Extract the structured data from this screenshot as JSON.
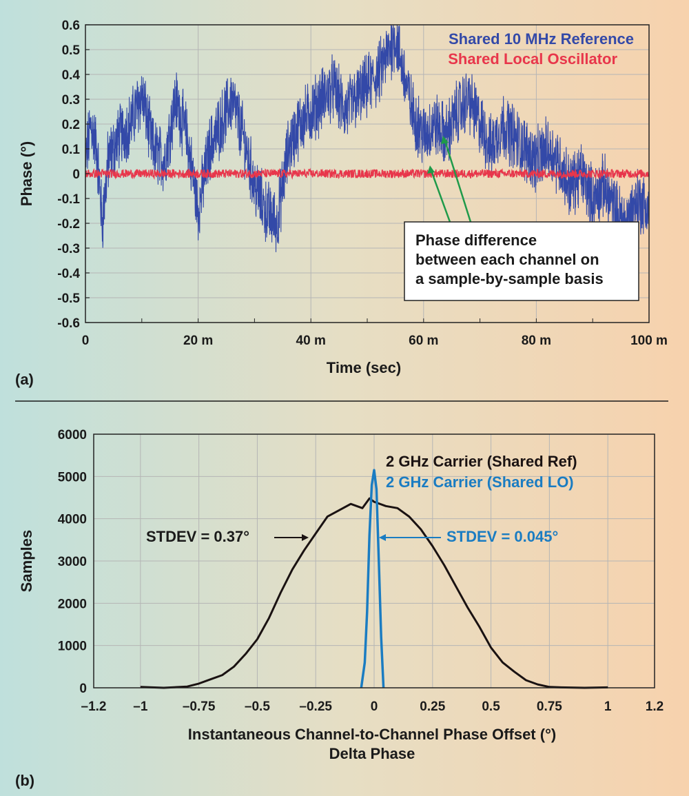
{
  "panel_labels": {
    "a": "(a)",
    "b": "(b)"
  },
  "colors": {
    "ref_blue": "#3349a8",
    "lo_red": "#e8364b",
    "black_curve": "#1a1212",
    "lo_blue": "#1a7cc2",
    "arrow_green": "#1f9a4a"
  },
  "chart_data": [
    {
      "type": "line",
      "xlabel": "Time (sec)",
      "ylabel": "Phase (°)",
      "xlim": [
        0,
        100
      ],
      "ylim": [
        -0.6,
        0.6
      ],
      "x_ticks": [
        0,
        20,
        40,
        60,
        80,
        100
      ],
      "x_tick_labels": [
        "0",
        "20 m",
        "40 m",
        "60 m",
        "80 m",
        "100 m"
      ],
      "y_ticks": [
        0.6,
        0.5,
        0.4,
        0.3,
        0.2,
        0.1,
        0,
        -0.1,
        -0.2,
        -0.3,
        -0.4,
        -0.5,
        -0.6
      ],
      "y_tick_labels": [
        "0.6",
        "0.5",
        "0.4",
        "0.3",
        "0.2",
        "0.1",
        "0",
        "-0.1",
        "-0.2",
        "-0.3",
        "-0.4",
        "-0.5",
        "-0.6"
      ],
      "grid": true,
      "legend_position": "top-right",
      "series": [
        {
          "name": "Shared 10 MHz  Reference",
          "x": [
            0,
            1,
            2,
            3,
            4,
            6,
            8,
            10,
            12,
            14,
            16,
            18,
            20,
            22,
            24,
            26,
            28,
            30,
            32,
            34,
            36,
            38,
            40,
            42,
            44,
            46,
            48,
            50,
            52,
            54,
            55,
            56,
            58,
            60,
            62,
            64,
            66,
            68,
            70,
            72,
            74,
            76,
            78,
            80,
            82,
            84,
            86,
            88,
            90,
            92,
            94,
            96,
            98,
            100
          ],
          "y": [
            0.05,
            0.2,
            0.1,
            -0.2,
            0.05,
            0.15,
            0.2,
            0.32,
            0.1,
            0.05,
            0.3,
            0.15,
            -0.15,
            0.1,
            0.2,
            0.3,
            0.15,
            -0.05,
            -0.15,
            -0.2,
            0.1,
            0.2,
            0.25,
            0.3,
            0.35,
            0.25,
            0.3,
            0.35,
            0.4,
            0.5,
            0.55,
            0.45,
            0.25,
            0.15,
            0.2,
            0.15,
            0.25,
            0.3,
            0.2,
            0.1,
            0.2,
            0.15,
            0.1,
            0.05,
            0.1,
            0.05,
            -0.05,
            0.0,
            -0.1,
            -0.05,
            -0.15,
            -0.2,
            -0.1,
            -0.15
          ]
        },
        {
          "name": "Shared Local  Oscillator",
          "x": [
            0,
            100
          ],
          "y": [
            0,
            0
          ]
        }
      ],
      "annotation": [
        "Phase difference",
        "between each channel on",
        "a sample-by-sample basis"
      ]
    },
    {
      "type": "line",
      "xlabel": "Instantaneous Channel-to-Channel Phase Offset (°)",
      "xlabel2": "Delta Phase",
      "ylabel": "Samples",
      "xlim": [
        -1.2,
        1.2
      ],
      "ylim": [
        0,
        6000
      ],
      "x_ticks": [
        -1.2,
        -1,
        -0.75,
        -0.5,
        -0.25,
        0,
        0.25,
        0.5,
        0.75,
        1,
        1.2
      ],
      "x_tick_labels": [
        "–1.2",
        "–1",
        "–0.75",
        "–0.5",
        "–0.25",
        "0",
        "0.25",
        "0.5",
        "0.75",
        "1",
        "1.2"
      ],
      "y_ticks": [
        0,
        1000,
        2000,
        3000,
        4000,
        5000,
        6000
      ],
      "y_tick_labels": [
        "0",
        "1000",
        "2000",
        "3000",
        "4000",
        "5000",
        "6000"
      ],
      "grid": true,
      "legend_position": "top-right",
      "series": [
        {
          "name": "2 GHz Carrier (Shared Ref)",
          "x": [
            -1.0,
            -0.9,
            -0.8,
            -0.75,
            -0.7,
            -0.65,
            -0.6,
            -0.55,
            -0.5,
            -0.45,
            -0.4,
            -0.35,
            -0.3,
            -0.25,
            -0.2,
            -0.15,
            -0.1,
            -0.05,
            -0.02,
            0.0,
            0.05,
            0.1,
            0.15,
            0.2,
            0.25,
            0.3,
            0.35,
            0.4,
            0.45,
            0.5,
            0.55,
            0.6,
            0.65,
            0.7,
            0.75,
            0.8,
            0.9,
            1.0
          ],
          "y": [
            20,
            0,
            30,
            100,
            200,
            300,
            500,
            800,
            1150,
            1650,
            2250,
            2800,
            3250,
            3650,
            4050,
            4200,
            4350,
            4250,
            4480,
            4400,
            4300,
            4250,
            4050,
            3750,
            3350,
            2900,
            2400,
            1900,
            1450,
            950,
            600,
            380,
            180,
            80,
            20,
            10,
            0,
            10
          ]
        },
        {
          "name": "2 GHz Carrier (Shared LO)",
          "x": [
            -0.055,
            -0.04,
            -0.03,
            -0.02,
            -0.01,
            0.0,
            0.01,
            0.02,
            0.03,
            0.04
          ],
          "y": [
            0,
            600,
            1800,
            3600,
            4800,
            5150,
            4700,
            3000,
            1200,
            0
          ]
        }
      ],
      "annotations": [
        {
          "text": "STDEV = 0.37°"
        },
        {
          "text": "STDEV = 0.045°"
        }
      ]
    }
  ]
}
